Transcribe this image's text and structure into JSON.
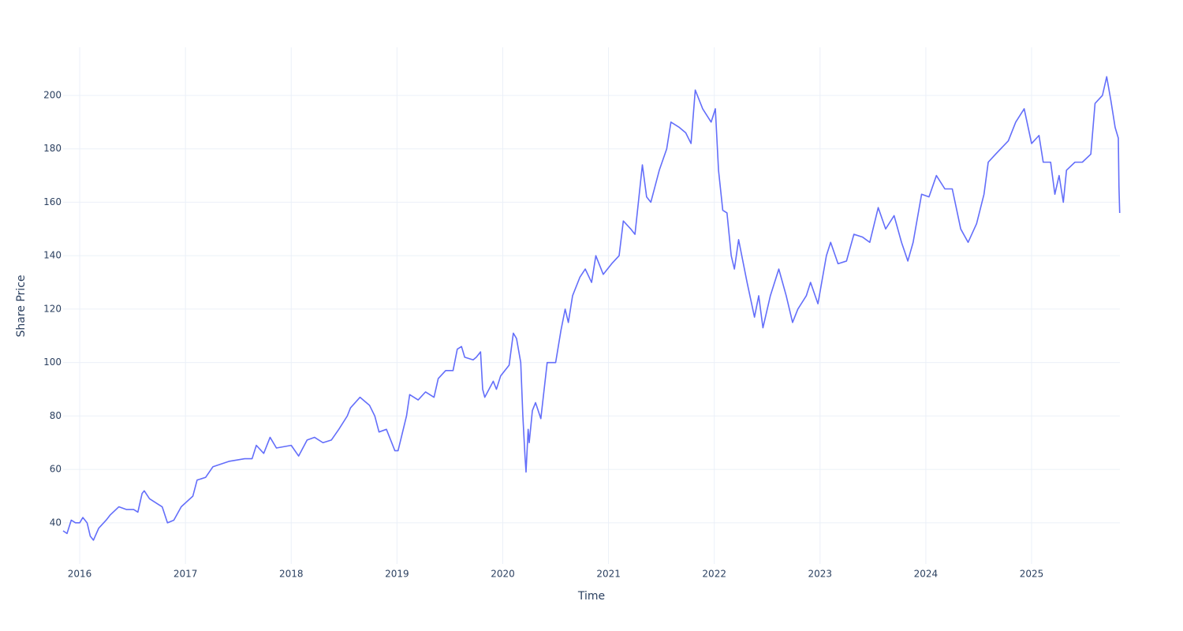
{
  "chart_data": {
    "type": "line",
    "x_label": "Time",
    "y_label": "Share Price",
    "x": [
      2015.843,
      2015.88,
      2015.92,
      2015.96,
      2016.0,
      2016.03,
      2016.07,
      2016.1,
      2016.13,
      2016.18,
      2016.25,
      2016.29,
      2016.37,
      2016.44,
      2016.51,
      2016.55,
      2016.59,
      2016.61,
      2016.66,
      2016.74,
      2016.78,
      2016.83,
      2016.89,
      2016.96,
      2017.07,
      2017.11,
      2017.19,
      2017.26,
      2017.41,
      2017.56,
      2017.63,
      2017.67,
      2017.74,
      2017.8,
      2017.86,
      2018.0,
      2018.07,
      2018.15,
      2018.22,
      2018.3,
      2018.38,
      2018.45,
      2018.53,
      2018.56,
      2018.65,
      2018.74,
      2018.79,
      2018.83,
      2018.9,
      2018.94,
      2018.98,
      2019.01,
      2019.09,
      2019.12,
      2019.2,
      2019.27,
      2019.35,
      2019.39,
      2019.46,
      2019.53,
      2019.57,
      2019.61,
      2019.64,
      2019.72,
      2019.75,
      2019.79,
      2019.81,
      2019.83,
      2019.91,
      2019.94,
      2019.98,
      2020.06,
      2020.1,
      2020.13,
      2020.17,
      2020.19,
      2020.21,
      2020.22,
      2020.24,
      2020.25,
      2020.28,
      2020.31,
      2020.36,
      2020.42,
      2020.5,
      2020.55,
      2020.59,
      2020.62,
      2020.66,
      2020.73,
      2020.78,
      2020.84,
      2020.88,
      2020.95,
      2021.03,
      2021.1,
      2021.14,
      2021.21,
      2021.25,
      2021.32,
      2021.36,
      2021.4,
      2021.48,
      2021.55,
      2021.59,
      2021.67,
      2021.73,
      2021.78,
      2021.82,
      2021.89,
      2021.97,
      2022.01,
      2022.04,
      2022.08,
      2022.12,
      2022.16,
      2022.19,
      2022.23,
      2022.31,
      2022.38,
      2022.42,
      2022.46,
      2022.53,
      2022.61,
      2022.68,
      2022.74,
      2022.79,
      2022.87,
      2022.91,
      2022.98,
      2023.06,
      2023.1,
      2023.17,
      2023.25,
      2023.32,
      2023.4,
      2023.47,
      2023.55,
      2023.62,
      2023.7,
      2023.77,
      2023.83,
      2023.88,
      2023.96,
      2024.03,
      2024.1,
      2024.18,
      2024.25,
      2024.33,
      2024.4,
      2024.48,
      2024.55,
      2024.59,
      2024.66,
      2024.78,
      2024.85,
      2024.93,
      2025.0,
      2025.07,
      2025.11,
      2025.18,
      2025.22,
      2025.26,
      2025.3,
      2025.33,
      2025.41,
      2025.48,
      2025.56,
      2025.6,
      2025.67,
      2025.71,
      2025.75,
      2025.79,
      2025.82,
      2025.826,
      2025.833
    ],
    "series": [
      {
        "name": "Share Price",
        "color": "#636efa",
        "values": [
          37,
          36,
          41,
          40,
          40,
          42,
          40,
          35,
          33.5,
          38,
          41,
          43,
          46,
          45,
          45,
          44,
          51,
          52,
          49,
          47,
          46,
          40,
          41,
          46,
          50,
          56,
          57,
          61,
          63,
          64,
          64,
          69,
          66,
          72,
          68,
          69,
          65,
          71,
          72,
          70,
          71,
          75,
          80,
          83,
          87,
          84,
          80,
          74,
          75,
          71,
          67,
          67,
          80,
          88,
          86,
          89,
          87,
          94,
          97,
          97,
          105,
          106,
          102,
          101,
          102,
          104,
          90,
          87,
          93,
          90,
          95,
          99,
          111,
          109,
          100,
          80,
          65,
          59,
          75,
          70,
          82,
          85,
          79,
          100,
          100,
          112,
          120,
          115,
          125,
          132,
          135,
          130,
          140,
          133,
          137,
          140,
          153,
          150,
          148,
          174,
          162,
          160,
          172,
          180,
          190,
          188,
          186,
          182,
          202,
          195,
          190,
          195,
          172,
          157,
          156,
          140,
          135,
          146,
          130,
          117,
          125,
          113,
          125,
          135,
          125,
          115,
          120,
          125,
          130,
          122,
          140,
          145,
          137,
          138,
          148,
          147,
          145,
          158,
          150,
          155,
          145,
          138,
          145,
          163,
          162,
          170,
          165,
          165,
          150,
          145,
          152,
          163,
          175,
          178,
          183,
          190,
          195,
          182,
          185,
          175,
          175,
          163,
          170,
          160,
          172,
          175,
          175,
          178,
          197,
          200,
          207,
          198,
          188,
          184,
          166,
          156
        ]
      }
    ],
    "xlim": [
      2015.843,
      2025.835
    ],
    "xticks": [
      2016,
      2017,
      2018,
      2019,
      2020,
      2021,
      2022,
      2023,
      2024,
      2025
    ],
    "ylim": [
      24.6,
      218
    ],
    "yticks": [
      40,
      60,
      80,
      100,
      120,
      140,
      160,
      180,
      200
    ],
    "grid": true
  }
}
